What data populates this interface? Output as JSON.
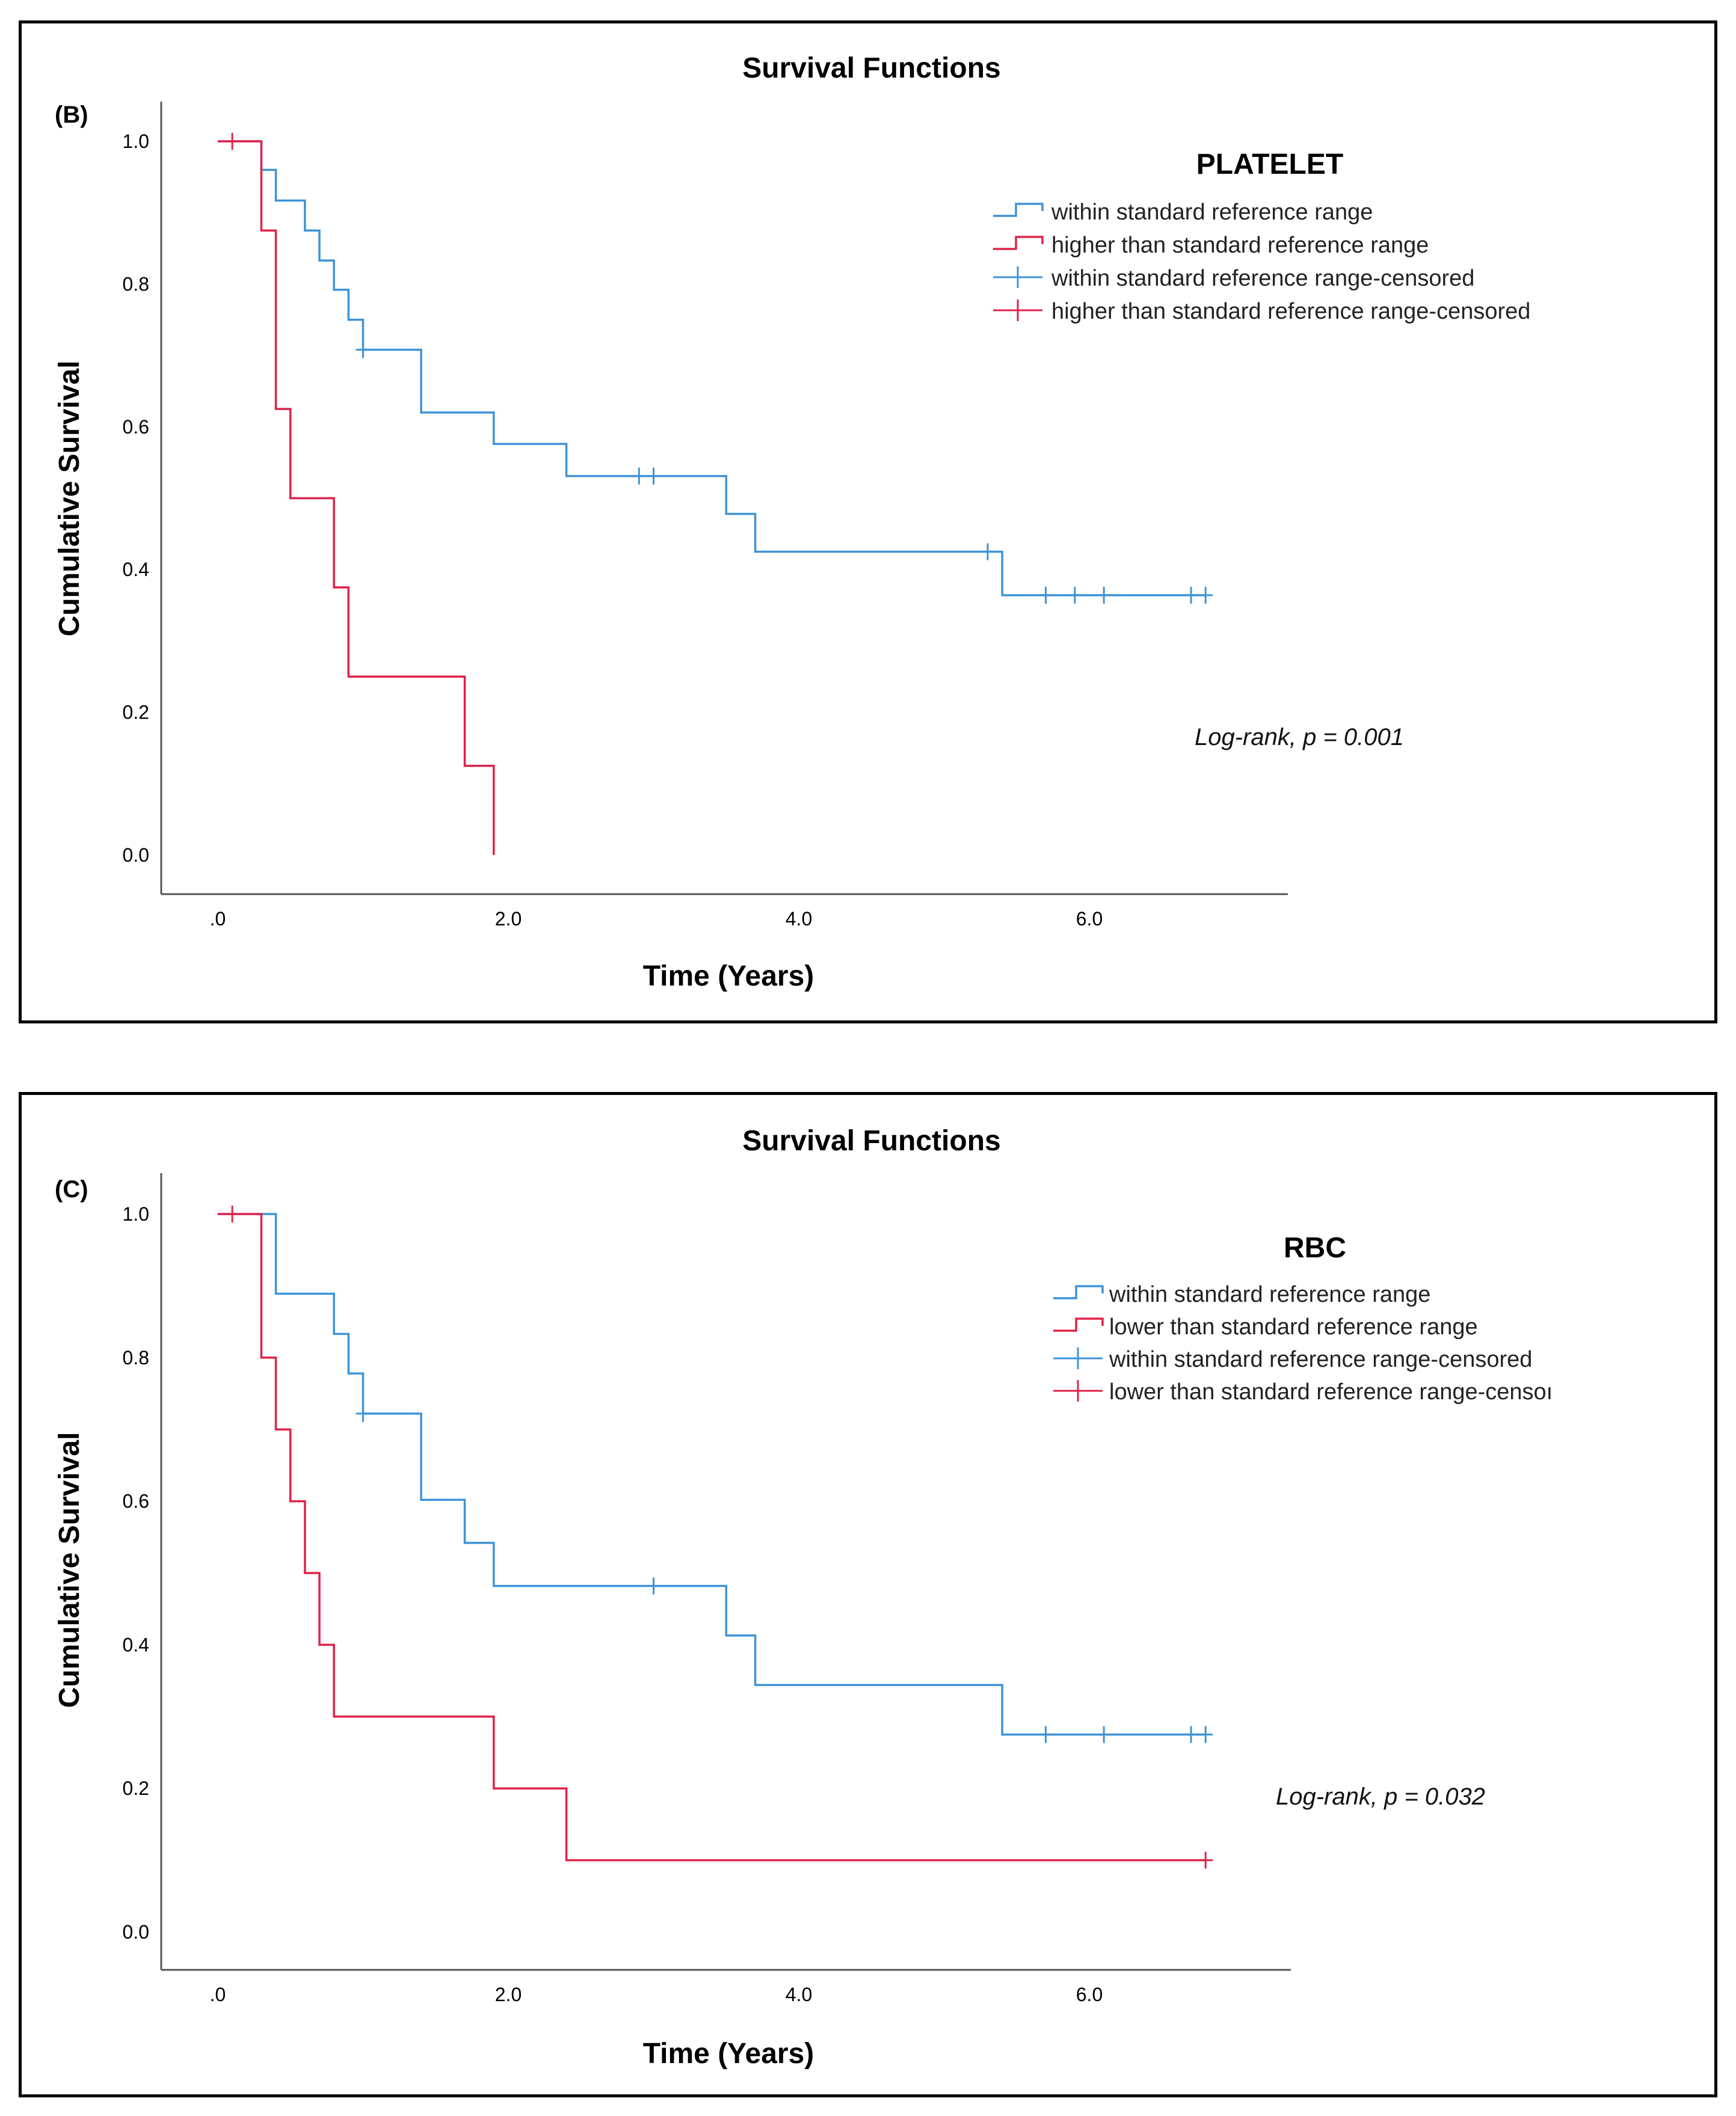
{
  "chart_data": [
    {
      "type": "line",
      "panel_label": "(B)",
      "title": "Survival Functions",
      "xlabel": "Time (Years)",
      "ylabel": "Cumulative Survival",
      "xlim": [
        -0.4,
        7.4
      ],
      "ylim": [
        -0.05,
        1.05
      ],
      "x_ticks": [
        ".0",
        "2.0",
        "4.0",
        "6.0"
      ],
      "x_tick_values": [
        0,
        2,
        4,
        6
      ],
      "y_ticks": [
        "0.0",
        "0.2",
        "0.4",
        "0.6",
        "0.8",
        "1.0"
      ],
      "y_tick_values": [
        0,
        0.2,
        0.4,
        0.6,
        0.8,
        1.0
      ],
      "legend_title": "PLATELET",
      "legend": [
        {
          "label": "within standard reference range",
          "color": "#3d93d8",
          "kind": "line"
        },
        {
          "label": "higher than standard reference range",
          "color": "#e0224a",
          "kind": "line"
        },
        {
          "label": "within standard reference range-censored",
          "color": "#3d93d8",
          "kind": "censor"
        },
        {
          "label": "higher than standard reference range-censored",
          "color": "#e0224a",
          "kind": "censor"
        }
      ],
      "annotation": "Log-rank, p = 0.001",
      "series": [
        {
          "name": "within standard reference range",
          "color": "#3d93d8",
          "steps": [
            [
              0,
              1.0
            ],
            [
              0.3,
              0.96
            ],
            [
              0.4,
              0.917
            ],
            [
              0.6,
              0.875
            ],
            [
              0.7,
              0.833
            ],
            [
              0.8,
              0.792
            ],
            [
              0.9,
              0.75
            ],
            [
              1.0,
              0.708
            ],
            [
              1.4,
              0.62
            ],
            [
              1.9,
              0.576
            ],
            [
              2.4,
              0.531
            ],
            [
              3.5,
              0.478
            ],
            [
              3.7,
              0.425
            ],
            [
              5.4,
              0.364
            ]
          ],
          "end_x": 6.8,
          "censored": [
            [
              1.0,
              0.708
            ],
            [
              2.9,
              0.531
            ],
            [
              3.0,
              0.531
            ],
            [
              5.3,
              0.425
            ],
            [
              5.7,
              0.364
            ],
            [
              5.9,
              0.364
            ],
            [
              6.1,
              0.364
            ],
            [
              6.7,
              0.364
            ],
            [
              6.8,
              0.364
            ]
          ]
        },
        {
          "name": "higher than standard reference range",
          "color": "#e0224a",
          "steps": [
            [
              0,
              1.0
            ],
            [
              0.3,
              0.875
            ],
            [
              0.4,
              0.625
            ],
            [
              0.5,
              0.5
            ],
            [
              0.8,
              0.375
            ],
            [
              0.9,
              0.25
            ],
            [
              1.7,
              0.125
            ],
            [
              1.9,
              0.0
            ]
          ],
          "end_x": 1.9,
          "censored": [
            [
              0.1,
              1.0
            ]
          ]
        }
      ]
    },
    {
      "type": "line",
      "panel_label": "(C)",
      "title": "Survival Functions",
      "xlabel": "Time (Years)",
      "ylabel": "Cumulative Survival",
      "xlim": [
        -0.4,
        7.4
      ],
      "ylim": [
        -0.05,
        1.05
      ],
      "x_ticks": [
        ".0",
        "2.0",
        "4.0",
        "6.0"
      ],
      "x_tick_values": [
        0,
        2,
        4,
        6
      ],
      "y_ticks": [
        "0.0",
        "0.2",
        "0.4",
        "0.6",
        "0.8",
        "1.0"
      ],
      "y_tick_values": [
        0,
        0.2,
        0.4,
        0.6,
        0.8,
        1.0
      ],
      "legend_title": "RBC",
      "legend": [
        {
          "label": "within standard reference range",
          "color": "#3d93d8",
          "kind": "line"
        },
        {
          "label": "lower than standard reference range",
          "color": "#e0224a",
          "kind": "line"
        },
        {
          "label": "within standard reference range-censored",
          "color": "#3d93d8",
          "kind": "censor"
        },
        {
          "label": "lower than standard reference range-censoı",
          "color": "#e0224a",
          "kind": "censor"
        }
      ],
      "annotation": "Log-rank, p = 0.032",
      "series": [
        {
          "name": "within standard reference range",
          "color": "#3d93d8",
          "steps": [
            [
              0,
              1.0
            ],
            [
              0.4,
              0.889
            ],
            [
              0.8,
              0.833
            ],
            [
              0.9,
              0.778
            ],
            [
              1.0,
              0.722
            ],
            [
              1.4,
              0.602
            ],
            [
              1.7,
              0.542
            ],
            [
              1.9,
              0.482
            ],
            [
              3.5,
              0.413
            ],
            [
              3.7,
              0.344
            ],
            [
              5.4,
              0.275
            ]
          ],
          "end_x": 6.8,
          "censored": [
            [
              1.0,
              0.722
            ],
            [
              3.0,
              0.482
            ],
            [
              5.7,
              0.275
            ],
            [
              6.1,
              0.275
            ],
            [
              6.7,
              0.275
            ],
            [
              6.8,
              0.275
            ]
          ]
        },
        {
          "name": "lower than standard reference range",
          "color": "#e0224a",
          "steps": [
            [
              0,
              1.0
            ],
            [
              0.3,
              0.8
            ],
            [
              0.4,
              0.7
            ],
            [
              0.5,
              0.6
            ],
            [
              0.6,
              0.5
            ],
            [
              0.7,
              0.4
            ],
            [
              0.8,
              0.3
            ],
            [
              1.9,
              0.2
            ],
            [
              2.4,
              0.1
            ]
          ],
          "end_x": 6.8,
          "censored": [
            [
              0.1,
              1.0
            ],
            [
              6.8,
              0.1
            ]
          ]
        }
      ]
    }
  ]
}
